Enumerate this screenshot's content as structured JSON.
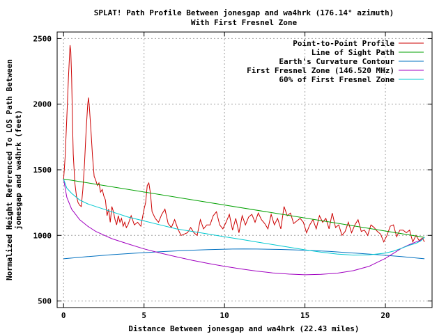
{
  "chart_data": {
    "type": "line",
    "title": "SPLAT! Path Profile Between jonesgap and wa4hrk (176.14° azimuth)",
    "subtitle": "With First Fresnel Zone",
    "xlabel": "Distance Between jonesgap and wa4hrk (22.43 miles)",
    "ylabel_line1": "Normalized Height Referenced To LOS Path Between",
    "ylabel_line2": "jonesgap and wa4hrk (feet)",
    "xlim": [
      -0.4,
      22.9
    ],
    "ylim": [
      450,
      2550
    ],
    "xticks": [
      0,
      5,
      10,
      15,
      20
    ],
    "yticks": [
      500,
      1000,
      1500,
      2000,
      2500
    ],
    "grid": true,
    "legend_position": "top-right",
    "series": [
      {
        "name": "Point-to-Point Profile",
        "color": "#cc0000",
        "x": [
          0,
          0.1,
          0.2,
          0.3,
          0.4,
          0.45,
          0.5,
          0.55,
          0.6,
          0.7,
          0.8,
          0.9,
          1.0,
          1.1,
          1.2,
          1.3,
          1.4,
          1.5,
          1.55,
          1.6,
          1.7,
          1.8,
          1.9,
          2.0,
          2.1,
          2.2,
          2.3,
          2.4,
          2.5,
          2.6,
          2.7,
          2.8,
          2.9,
          3.0,
          3.1,
          3.2,
          3.3,
          3.4,
          3.5,
          3.6,
          3.7,
          3.8,
          3.9,
          4.0,
          4.2,
          4.4,
          4.6,
          4.8,
          5.0,
          5.1,
          5.2,
          5.3,
          5.4,
          5.5,
          5.7,
          5.9,
          6.1,
          6.3,
          6.5,
          6.7,
          6.9,
          7.1,
          7.3,
          7.5,
          7.7,
          7.9,
          8.1,
          8.3,
          8.5,
          8.7,
          8.9,
          9.1,
          9.3,
          9.5,
          9.7,
          9.9,
          10.1,
          10.3,
          10.5,
          10.7,
          10.9,
          11.1,
          11.3,
          11.5,
          11.7,
          11.9,
          12.1,
          12.3,
          12.5,
          12.7,
          12.9,
          13.1,
          13.3,
          13.5,
          13.7,
          13.9,
          14.1,
          14.3,
          14.5,
          14.7,
          14.9,
          15.1,
          15.3,
          15.5,
          15.7,
          15.9,
          16.1,
          16.3,
          16.5,
          16.7,
          16.9,
          17.1,
          17.3,
          17.5,
          17.7,
          17.9,
          18.1,
          18.3,
          18.5,
          18.7,
          18.9,
          19.1,
          19.3,
          19.5,
          19.7,
          19.9,
          20.1,
          20.3,
          20.5,
          20.7,
          20.9,
          21.1,
          21.3,
          21.5,
          21.7,
          21.9,
          22.1,
          22.3,
          22.43
        ],
        "y": [
          1420,
          1600,
          1900,
          2200,
          2450,
          2400,
          2200,
          1900,
          1620,
          1400,
          1300,
          1250,
          1230,
          1220,
          1350,
          1550,
          1800,
          2000,
          2050,
          1980,
          1800,
          1600,
          1450,
          1420,
          1380,
          1400,
          1330,
          1350,
          1300,
          1270,
          1150,
          1200,
          1100,
          1220,
          1180,
          1120,
          1080,
          1150,
          1100,
          1130,
          1070,
          1100,
          1060,
          1080,
          1150,
          1080,
          1100,
          1070,
          1200,
          1250,
          1380,
          1400,
          1320,
          1180,
          1130,
          1100,
          1160,
          1200,
          1090,
          1060,
          1120,
          1050,
          1000,
          1010,
          1020,
          1060,
          1020,
          1000,
          1120,
          1050,
          1080,
          1080,
          1150,
          1180,
          1080,
          1050,
          1100,
          1160,
          1040,
          1130,
          1020,
          1150,
          1080,
          1140,
          1160,
          1100,
          1170,
          1120,
          1090,
          1050,
          1160,
          1080,
          1130,
          1050,
          1220,
          1150,
          1170,
          1090,
          1110,
          1130,
          1100,
          1020,
          1080,
          1120,
          1050,
          1150,
          1100,
          1130,
          1050,
          1170,
          1060,
          1080,
          1000,
          1030,
          1100,
          1020,
          1080,
          1120,
          1030,
          1040,
          1000,
          1080,
          1060,
          1030,
          1010,
          950,
          1000,
          1070,
          1080,
          990,
          1040,
          1040,
          1020,
          1040,
          950,
          1000,
          960,
          980,
          950
        ]
      },
      {
        "name": "Line of Sight Path",
        "color": "#00a000",
        "x": [
          0,
          22.43
        ],
        "y": [
          1430,
          985
        ]
      },
      {
        "name": "Earth's Curvature Contour",
        "color": "#0070c0",
        "x": [
          0,
          1.5,
          3,
          4.5,
          6,
          7.5,
          9,
          10.5,
          11.215,
          12,
          13.5,
          15,
          16.5,
          18,
          19.5,
          21,
          22.43
        ],
        "y": [
          822,
          838,
          853,
          865,
          876,
          885,
          892,
          896,
          897,
          896,
          893,
          887,
          878,
          866,
          853,
          838,
          822
        ]
      },
      {
        "name": "First Fresnel Zone (146.520 MHz)",
        "color": "#a000c0",
        "x": [
          0,
          0.2,
          0.5,
          1,
          1.5,
          2,
          3,
          4,
          5,
          6,
          7,
          8,
          9,
          10,
          11,
          12,
          13,
          14,
          15,
          16,
          17,
          18,
          19,
          20,
          20.5,
          21,
          21.5,
          21.9,
          22.2,
          22.43
        ],
        "y": [
          1430,
          1290,
          1200,
          1120,
          1070,
          1030,
          975,
          935,
          897,
          866,
          837,
          810,
          786,
          764,
          745,
          728,
          714,
          705,
          700,
          703,
          712,
          731,
          765,
          825,
          863,
          902,
          930,
          950,
          962,
          985
        ]
      },
      {
        "name": "60% of First Fresnel Zone",
        "color": "#00c8d0",
        "x": [
          0,
          0.2,
          0.5,
          1,
          1.5,
          2,
          3,
          4,
          5,
          6,
          7,
          8,
          9,
          10,
          11,
          12,
          13,
          14,
          15,
          16,
          17,
          18,
          19,
          20,
          20.5,
          21,
          21.5,
          21.9,
          22.2,
          22.43
        ],
        "y": [
          1430,
          1360,
          1320,
          1270,
          1240,
          1220,
          1180,
          1140,
          1110,
          1080,
          1050,
          1030,
          1010,
          990,
          970,
          950,
          930,
          910,
          890,
          872,
          858,
          850,
          852,
          865,
          880,
          902,
          925,
          940,
          958,
          985
        ]
      }
    ]
  }
}
